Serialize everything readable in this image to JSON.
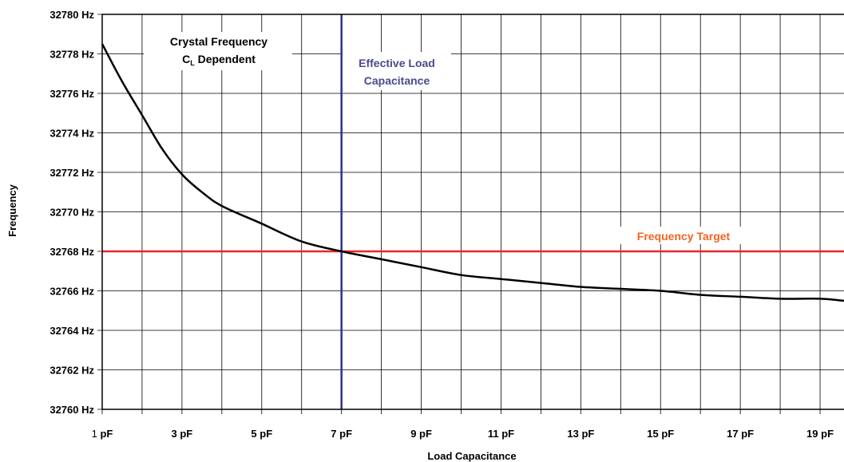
{
  "chart_data": {
    "type": "line",
    "title": "",
    "xlabel": "Load Capacitance",
    "ylabel": "Frequency",
    "xlim": [
      1,
      19.6
    ],
    "ylim": [
      32760,
      32780
    ],
    "x_tick_labels": [
      {
        "value": 1,
        "num": "1",
        "unit": " pF"
      },
      {
        "value": 3,
        "num": "3",
        "unit": " pF"
      },
      {
        "value": 5,
        "num": "5",
        "unit": " pF"
      },
      {
        "value": 7,
        "num": "7",
        "unit": " pF"
      },
      {
        "value": 9,
        "num": "9",
        "unit": " pF"
      },
      {
        "value": 11,
        "num": "11",
        "unit": " pF"
      },
      {
        "value": 13,
        "num": "13",
        "unit": " pF"
      },
      {
        "value": 15,
        "num": "15",
        "unit": " pF"
      },
      {
        "value": 17,
        "num": "17",
        "unit": " pF"
      },
      {
        "value": 19,
        "num": "19",
        "unit": " pF"
      }
    ],
    "x_gridlines": [
      1,
      2,
      3,
      4,
      5,
      6,
      7,
      8,
      9,
      10,
      11,
      12,
      13,
      14,
      15,
      16,
      17,
      18,
      19
    ],
    "y_ticks": [
      32760,
      32762,
      32764,
      32766,
      32768,
      32770,
      32772,
      32774,
      32776,
      32778,
      32780
    ],
    "y_tick_labels": [
      "32760 Hz",
      "32762 Hz",
      "32764 Hz",
      "32766 Hz",
      "32768 Hz",
      "32770 Hz",
      "32772 Hz",
      "32774 Hz",
      "32776 Hz",
      "32778 Hz",
      "32780 Hz"
    ],
    "grid": true,
    "series": [
      {
        "color": "#000000",
        "x": [
          1,
          1.5,
          2,
          2.5,
          3,
          3.5,
          4,
          5,
          6,
          7,
          8,
          9,
          10,
          11,
          12,
          13,
          14,
          15,
          16,
          17,
          18,
          19,
          19.6
        ],
        "y": [
          32778.5,
          32776.6,
          32774.9,
          32773.2,
          32771.9,
          32771.0,
          32770.3,
          32769.4,
          32768.5,
          32768.0,
          32767.6,
          32767.2,
          32766.8,
          32766.6,
          32766.4,
          32766.2,
          32766.1,
          32766.0,
          32765.8,
          32765.7,
          32765.6,
          32765.6,
          32765.5
        ]
      }
    ],
    "reference_lines": [
      {
        "orientation": "vertical",
        "x": 7,
        "color": "#2e3192"
      },
      {
        "orientation": "horizontal",
        "y": 32768,
        "color": "#e8262b"
      }
    ],
    "annotations": {
      "curve_label_line1": "Crystal Frequency",
      "curve_label_c": "C",
      "curve_label_sub": "L",
      "curve_label_rest": " Dependent",
      "vline_label_line1": "Effective Load",
      "vline_label_line2": "Capacitance",
      "hline_label": "Frequency Target"
    },
    "colors": {
      "curve": "#000000",
      "effective_load": "#2e3192",
      "effective_load_text": "#4a4a8c",
      "target": "#e8262b",
      "target_text": "#f26522",
      "grid": "#000000"
    }
  }
}
